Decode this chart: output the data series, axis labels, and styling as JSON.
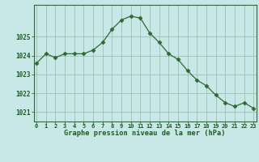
{
  "x": [
    0,
    1,
    2,
    3,
    4,
    5,
    6,
    7,
    8,
    9,
    10,
    11,
    12,
    13,
    14,
    15,
    16,
    17,
    18,
    19,
    20,
    21,
    22,
    23
  ],
  "y": [
    1023.6,
    1024.1,
    1023.9,
    1024.1,
    1024.1,
    1024.1,
    1024.3,
    1024.7,
    1025.4,
    1025.9,
    1026.1,
    1026.0,
    1025.2,
    1024.7,
    1024.1,
    1023.8,
    1023.2,
    1022.7,
    1022.4,
    1021.9,
    1021.5,
    1021.3,
    1021.5,
    1021.2
  ],
  "line_color": "#2d6a2d",
  "marker": "D",
  "marker_size": 2.5,
  "bg_color": "#c8e8e8",
  "grid_color": "#9dbfb0",
  "xlabel": "Graphe pression niveau de la mer (hPa)",
  "ylabel_ticks": [
    1021,
    1022,
    1023,
    1024,
    1025
  ],
  "ylim": [
    1020.5,
    1026.7
  ],
  "xlim": [
    -0.3,
    23.3
  ],
  "xlabel_color": "#1a5c1a",
  "tick_label_color": "#1a5c1a",
  "spine_color": "#2d6a2d",
  "tick_fontsize": 5.0,
  "xlabel_fontsize": 6.2
}
